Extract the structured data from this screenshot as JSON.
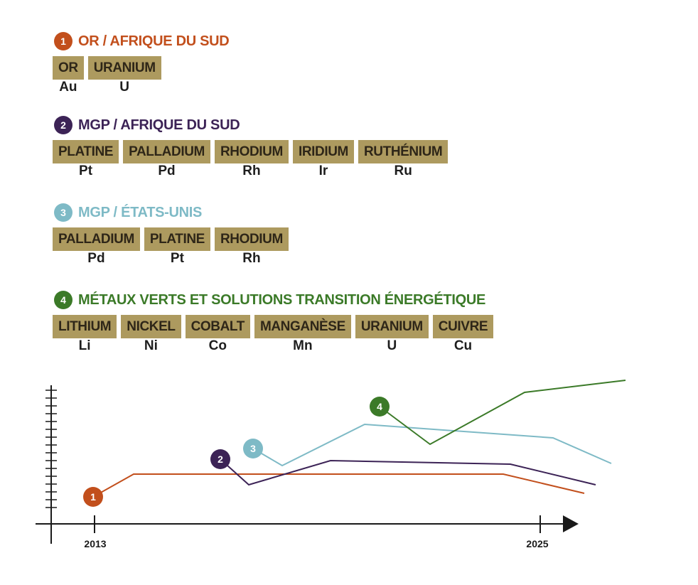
{
  "sections": [
    {
      "number": "1",
      "title": "OR / AFRIQUE DU SUD",
      "color": "#c24f1c",
      "metals": [
        {
          "name": "OR",
          "symbol": "Au"
        },
        {
          "name": "URANIUM",
          "symbol": "U"
        }
      ]
    },
    {
      "number": "2",
      "title": "MGP / AFRIQUE DU SUD",
      "color": "#3c2356",
      "metals": [
        {
          "name": "PLATINE",
          "symbol": "Pt"
        },
        {
          "name": "PALLADIUM",
          "symbol": "Pd"
        },
        {
          "name": "RHODIUM",
          "symbol": "Rh"
        },
        {
          "name": "IRIDIUM",
          "symbol": "Ir"
        },
        {
          "name": "RUTHÉNIUM",
          "symbol": "Ru"
        }
      ]
    },
    {
      "number": "3",
      "title": "MGP / ÉTATS-UNIS",
      "color": "#7ebac6",
      "metals": [
        {
          "name": "PALLADIUM",
          "symbol": "Pd"
        },
        {
          "name": "PLATINE",
          "symbol": "Pt"
        },
        {
          "name": "RHODIUM",
          "symbol": "Rh"
        }
      ]
    },
    {
      "number": "4",
      "title": "MÉTAUX VERTS ET SOLUTIONS TRANSITION ÉNERGÉTIQUE",
      "color": "#3b7a28",
      "metals": [
        {
          "name": "LITHIUM",
          "symbol": "Li"
        },
        {
          "name": "NICKEL",
          "symbol": "Ni"
        },
        {
          "name": "COBALT",
          "symbol": "Co"
        },
        {
          "name": "MANGANÈSE",
          "symbol": "Mn"
        },
        {
          "name": "URANIUM",
          "symbol": "U"
        },
        {
          "name": "CUIVRE",
          "symbol": "Cu"
        }
      ]
    }
  ],
  "timeline": {
    "start": "2013",
    "end": "2025"
  }
}
